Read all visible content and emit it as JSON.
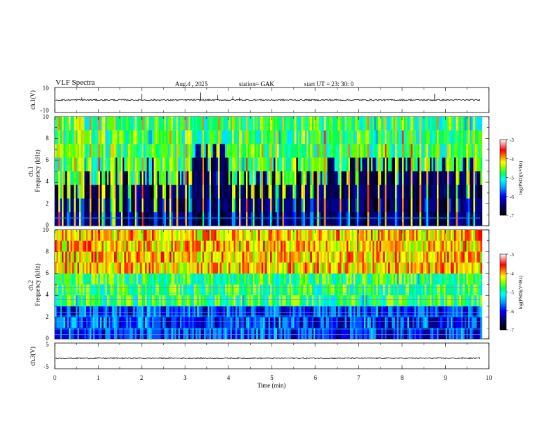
{
  "header": {
    "title": "VLF  Spectra",
    "date": "Aug.4  , 2025",
    "station": "station= GAK",
    "start": "start  UT  =    23: 30: 0"
  },
  "chart_data": [
    {
      "id": "ch1-waveform",
      "type": "line",
      "ylabel": "ch.1(V)",
      "ylim": [
        -10,
        10
      ],
      "yticks": [
        "10",
        "-10"
      ],
      "xlim": [
        0,
        10
      ],
      "series": [
        {
          "baseline": 0,
          "noise_amplitude": 0.6,
          "end_min": 9.8
        }
      ],
      "spikes": [
        {
          "t": 0.62,
          "v": 2
        },
        {
          "t": 2.0,
          "v": 5
        },
        {
          "t": 3.35,
          "v": 6
        },
        {
          "t": 3.75,
          "v": 4
        },
        {
          "t": 4.1,
          "v": 3
        },
        {
          "t": 4.25,
          "v": 2
        },
        {
          "t": 8.75,
          "v": 5
        }
      ]
    },
    {
      "id": "ch1-spectrogram",
      "type": "heatmap",
      "ylabel": "ch.1\nFrequency  (kHz)",
      "ylim": [
        0,
        10
      ],
      "yticks": [
        "0",
        "2",
        "4",
        "6",
        "8",
        "10"
      ],
      "xlim": [
        0,
        10
      ],
      "data_end_min": 9.8,
      "colorbar": {
        "label": "log(PSD)(V²/Hz)",
        "range": [
          -7,
          -3
        ],
        "ticks": [
          "-3",
          "-4",
          "-5",
          "-6",
          "-7"
        ]
      },
      "bursts": [
        0.08,
        0.15,
        0.3,
        0.45,
        0.55,
        0.62,
        0.8,
        1.0,
        1.1,
        1.3,
        1.35,
        1.5,
        1.7,
        1.85,
        2.0,
        2.3,
        2.5,
        2.65,
        2.8,
        3.0,
        3.1,
        3.4,
        3.55,
        3.75,
        4.1,
        4.25,
        4.4,
        4.55,
        4.75,
        4.95,
        5.1,
        5.25,
        5.5,
        5.7,
        5.9,
        6.05,
        6.2,
        6.55,
        6.75,
        6.95,
        7.2,
        7.45,
        7.6,
        7.85,
        8.0,
        8.2,
        8.4,
        8.55,
        8.8,
        9.05,
        9.25,
        9.5,
        9.65
      ]
    },
    {
      "id": "ch2-spectrogram",
      "type": "heatmap",
      "ylabel": "ch.2\nFrequency  (kHz)",
      "ylim": [
        0,
        10
      ],
      "yticks": [
        "0",
        "2",
        "4",
        "6",
        "8",
        "10"
      ],
      "xlim": [
        0,
        10
      ],
      "data_end_min": 9.8,
      "colorbar": {
        "label": "log(PSD)(V²/Hz)",
        "range": [
          -7,
          -3
        ],
        "ticks": [
          "-3",
          "-4",
          "-5",
          "-6",
          "-7"
        ]
      },
      "bands_khz": [
        0.4,
        0.9,
        1.6,
        2.1,
        2.4,
        3.0,
        3.6,
        4.2,
        4.7
      ]
    },
    {
      "id": "ch3-waveform",
      "type": "line",
      "ylabel": "ch.3(V)",
      "ylim": [
        -5,
        5
      ],
      "yticks": [
        "5",
        "-5"
      ],
      "xlim": [
        0,
        10
      ],
      "series": [
        {
          "baseline": -0.9,
          "noise_amplitude": 0.25,
          "end_min": 9.8
        }
      ],
      "xlabel": "Time  (min)",
      "xticks": [
        "0",
        "1",
        "2",
        "3",
        "4",
        "5",
        "6",
        "7",
        "8",
        "9",
        "10"
      ]
    }
  ]
}
